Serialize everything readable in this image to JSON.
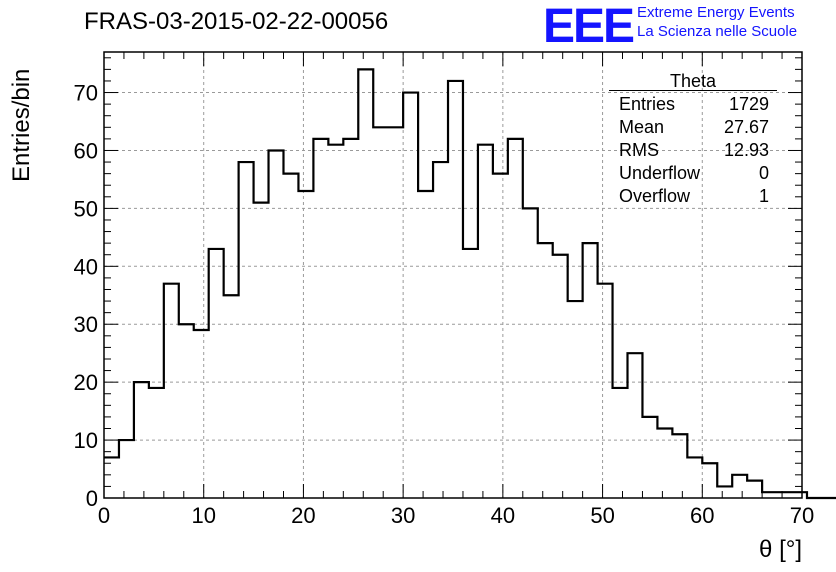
{
  "header": {
    "run_title": "FRAS-03-2015-02-22-00056",
    "logo_letters": "EEE",
    "logo_line1": "Extreme Energy Events",
    "logo_line2": "La Scienza nelle Scuole",
    "logo_color": "#1414ff"
  },
  "stats_box": {
    "title": "Theta",
    "rows": [
      {
        "label": "Entries",
        "value": "1729"
      },
      {
        "label": "Mean",
        "value": "27.67"
      },
      {
        "label": "RMS",
        "value": "12.93"
      },
      {
        "label": "Underflow",
        "value": "0"
      },
      {
        "label": "Overflow",
        "value": "1"
      }
    ]
  },
  "chart_data": {
    "type": "bar",
    "subtype": "step-histogram",
    "xlabel": "θ [°]",
    "ylabel": "Entries/bin",
    "xlim": [
      0,
      70
    ],
    "ylim": [
      0,
      77
    ],
    "bin_width": 1.5,
    "x_ticks": [
      0,
      10,
      20,
      30,
      40,
      50,
      60,
      70
    ],
    "y_ticks": [
      0,
      10,
      20,
      30,
      40,
      50,
      60,
      70
    ],
    "grid": true,
    "values": [
      7,
      10,
      20,
      19,
      37,
      30,
      29,
      43,
      35,
      58,
      51,
      60,
      56,
      53,
      62,
      61,
      62,
      74,
      64,
      64,
      70,
      53,
      58,
      72,
      43,
      61,
      56,
      62,
      50,
      44,
      42,
      34,
      44,
      37,
      19,
      25,
      14,
      12,
      11,
      7,
      6,
      2,
      4,
      3,
      1,
      1,
      1,
      0,
      0
    ]
  }
}
